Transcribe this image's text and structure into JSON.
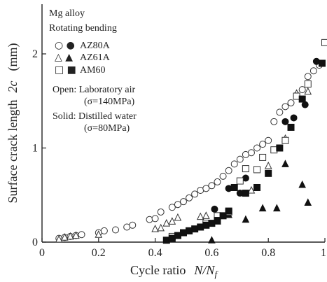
{
  "chart_data": {
    "type": "scatter",
    "title": "",
    "xlabel_main": "Cycle ratio",
    "xlabel_var": "N/N",
    "xlabel_sub": "f",
    "ylabel_main": "Surface crack length",
    "ylabel_var": "2c",
    "ylabel_unit": "(mm)",
    "xlim": [
      0,
      1.0
    ],
    "ylim": [
      0,
      2.4
    ],
    "xticks": [
      0,
      0.2,
      0.4,
      0.6,
      0.8,
      1
    ],
    "xtick_labels": [
      "0",
      "0.2",
      "0.4",
      "0.6",
      "0.8",
      "1"
    ],
    "yticks": [
      0,
      1,
      2
    ],
    "ytick_labels": [
      "0",
      "1",
      "2"
    ],
    "grid": false,
    "annotations": {
      "material": "Mg alloy",
      "test": "Rotating bending",
      "open_label": "Open: Laboratory air",
      "open_stress": "(σ=140MPa)",
      "solid_label": "Solid: Distilled water",
      "solid_stress": "(σ=80MPa)"
    },
    "legend": {
      "placement": "top-left",
      "entries": [
        {
          "name": "AZ80A",
          "symbols": "○ ●",
          "marker": "circle"
        },
        {
          "name": "AZ61A",
          "symbols": "△ ▲",
          "marker": "triangle"
        },
        {
          "name": "AM60",
          "symbols": "□ ■",
          "marker": "square"
        }
      ]
    },
    "series": [
      {
        "name": "AZ80A (open)",
        "marker": "circle",
        "filled": false,
        "points": [
          [
            0.06,
            0.04
          ],
          [
            0.08,
            0.05
          ],
          [
            0.1,
            0.06
          ],
          [
            0.12,
            0.07
          ],
          [
            0.14,
            0.08
          ],
          [
            0.2,
            0.1
          ],
          [
            0.22,
            0.12
          ],
          [
            0.26,
            0.13
          ],
          [
            0.3,
            0.16
          ],
          [
            0.32,
            0.18
          ],
          [
            0.38,
            0.24
          ],
          [
            0.4,
            0.25
          ],
          [
            0.42,
            0.32
          ],
          [
            0.46,
            0.37
          ],
          [
            0.48,
            0.4
          ],
          [
            0.5,
            0.43
          ],
          [
            0.52,
            0.47
          ],
          [
            0.54,
            0.51
          ],
          [
            0.56,
            0.55
          ],
          [
            0.58,
            0.57
          ],
          [
            0.6,
            0.6
          ],
          [
            0.62,
            0.64
          ],
          [
            0.64,
            0.7
          ],
          [
            0.66,
            0.76
          ],
          [
            0.68,
            0.83
          ],
          [
            0.7,
            0.88
          ],
          [
            0.72,
            0.93
          ],
          [
            0.74,
            0.95
          ],
          [
            0.76,
            1.0
          ],
          [
            0.78,
            1.04
          ],
          [
            0.8,
            1.08
          ],
          [
            0.82,
            1.28
          ],
          [
            0.84,
            1.38
          ],
          [
            0.86,
            1.44
          ],
          [
            0.88,
            1.48
          ],
          [
            0.9,
            1.56
          ],
          [
            0.92,
            1.62
          ],
          [
            0.94,
            1.76
          ],
          [
            0.96,
            1.82
          ],
          [
            0.98,
            1.88
          ]
        ]
      },
      {
        "name": "AZ80A (solid)",
        "marker": "circle",
        "filled": true,
        "points": [
          [
            0.61,
            0.35
          ],
          [
            0.66,
            0.57
          ],
          [
            0.7,
            0.52
          ],
          [
            0.72,
            0.68
          ],
          [
            0.86,
            1.28
          ],
          [
            0.89,
            1.32
          ],
          [
            0.93,
            1.46
          ],
          [
            0.97,
            1.92
          ]
        ]
      },
      {
        "name": "AZ61A (open)",
        "marker": "triangle",
        "filled": false,
        "points": [
          [
            0.06,
            0.03
          ],
          [
            0.08,
            0.05
          ],
          [
            0.1,
            0.06
          ],
          [
            0.12,
            0.07
          ],
          [
            0.2,
            0.08
          ],
          [
            0.4,
            0.14
          ],
          [
            0.42,
            0.15
          ],
          [
            0.44,
            0.2
          ],
          [
            0.46,
            0.22
          ],
          [
            0.48,
            0.26
          ],
          [
            0.56,
            0.27
          ],
          [
            0.58,
            0.28
          ],
          [
            0.74,
            0.55
          ],
          [
            0.8,
            0.81
          ],
          [
            0.86,
            1.1
          ],
          [
            0.9,
            1.58
          ],
          [
            0.94,
            1.6
          ]
        ]
      },
      {
        "name": "AZ61A (solid)",
        "marker": "triangle",
        "filled": true,
        "points": [
          [
            0.6,
            0.02
          ],
          [
            0.62,
            0.22
          ],
          [
            0.66,
            0.29
          ],
          [
            0.72,
            0.24
          ],
          [
            0.78,
            0.36
          ],
          [
            0.83,
            0.36
          ],
          [
            0.86,
            0.83
          ],
          [
            0.92,
            0.61
          ],
          [
            0.94,
            0.42
          ]
        ]
      },
      {
        "name": "AM60 (open)",
        "marker": "square",
        "filled": false,
        "points": [
          [
            0.46,
            0.06
          ],
          [
            0.52,
            0.12
          ],
          [
            0.58,
            0.2
          ],
          [
            0.62,
            0.28
          ],
          [
            0.66,
            0.32
          ],
          [
            0.7,
            0.65
          ],
          [
            0.72,
            0.78
          ],
          [
            0.76,
            0.77
          ],
          [
            0.78,
            0.9
          ],
          [
            0.82,
            0.98
          ],
          [
            0.86,
            1.08
          ],
          [
            0.9,
            1.55
          ],
          [
            0.94,
            1.68
          ],
          [
            1.0,
            2.12
          ]
        ]
      },
      {
        "name": "AM60 (solid)",
        "marker": "square",
        "filled": true,
        "points": [
          [
            0.44,
            0.02
          ],
          [
            0.46,
            0.04
          ],
          [
            0.48,
            0.07
          ],
          [
            0.5,
            0.1
          ],
          [
            0.52,
            0.12
          ],
          [
            0.54,
            0.14
          ],
          [
            0.56,
            0.16
          ],
          [
            0.58,
            0.18
          ],
          [
            0.6,
            0.2
          ],
          [
            0.62,
            0.23
          ],
          [
            0.64,
            0.28
          ],
          [
            0.66,
            0.33
          ],
          [
            0.68,
            0.58
          ],
          [
            0.72,
            0.52
          ],
          [
            0.76,
            0.58
          ],
          [
            0.8,
            0.73
          ],
          [
            0.84,
            1.0
          ],
          [
            0.88,
            1.22
          ],
          [
            0.92,
            1.52
          ],
          [
            0.99,
            1.9
          ]
        ]
      }
    ]
  }
}
